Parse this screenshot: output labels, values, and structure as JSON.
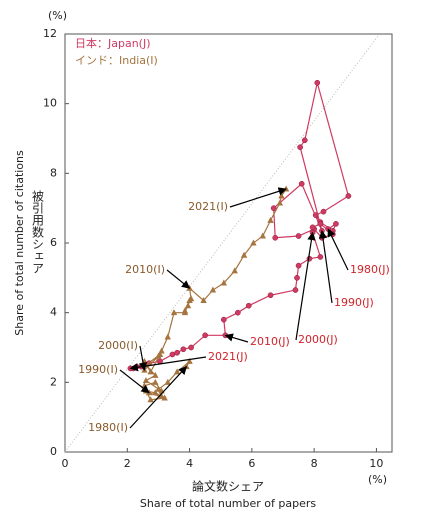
{
  "chart_data": {
    "type": "line",
    "x_unit": "(%)",
    "y_unit": "(%)",
    "xlabel": "論文数シェア",
    "xlabel_en": "Share of total number of papers",
    "ylabel": "被引用数シェア",
    "ylabel_en": "Share of total number of citations",
    "xlim": [
      0,
      10.5
    ],
    "ylim": [
      0,
      12
    ],
    "xticks": [
      0,
      2,
      4,
      6,
      8,
      10
    ],
    "yticks": [
      0,
      2,
      4,
      6,
      8,
      10,
      12
    ],
    "legend": "upper left",
    "reference_line": {
      "x": [
        0,
        10.1
      ],
      "values": [
        0,
        12
      ],
      "color": "#aaaaaa"
    },
    "series": [
      {
        "name": "日本：Japan(J)",
        "color": "#d03a62",
        "marker": "circle",
        "x": [
          8.45,
          8.7,
          8.6,
          8.2,
          8.05,
          8.3,
          9.1,
          8.1,
          7.7,
          7.55,
          8.25,
          7.6,
          6.7,
          6.75,
          7.5,
          8.0,
          8.25,
          8.6,
          8.2,
          7.95,
          7.95,
          8.2,
          7.85,
          7.5,
          7.45,
          7.4,
          6.6,
          5.9,
          5.55,
          5.1,
          5.15,
          4.5,
          4.05,
          3.8,
          3.6,
          3.45,
          3.05,
          2.7,
          2.45,
          2.3,
          2.2,
          2.1
        ],
        "values": [
          6.4,
          6.55,
          6.35,
          6.6,
          6.8,
          6.9,
          7.35,
          10.6,
          8.95,
          8.75,
          6.35,
          7.7,
          7.0,
          6.15,
          6.2,
          6.4,
          6.15,
          6.25,
          6.55,
          6.45,
          6.3,
          5.6,
          5.55,
          5.35,
          5.0,
          4.65,
          4.5,
          4.2,
          4.0,
          3.8,
          3.35,
          3.35,
          3.0,
          2.95,
          2.85,
          2.8,
          2.6,
          2.55,
          2.45,
          2.45,
          2.4,
          2.4
        ]
      },
      {
        "name": "インド：India(I)",
        "color": "#a5743f",
        "marker": "triangle",
        "x": [
          3.9,
          4.0,
          3.6,
          3.3,
          3.0,
          3.1,
          2.9,
          2.6,
          2.75,
          3.2,
          2.7,
          2.55,
          2.9,
          3.1,
          2.6,
          2.9,
          2.6,
          3.05,
          2.75,
          2.55,
          2.55,
          3.0,
          3.1,
          3.3,
          3.5,
          3.85,
          4.0,
          3.95,
          3.85,
          4.05,
          4.0,
          4.45,
          4.75,
          5.1,
          5.45,
          5.75,
          6.05,
          6.35,
          6.6,
          6.9,
          6.95,
          7.1
        ],
        "values": [
          2.45,
          2.6,
          2.3,
          2.0,
          1.8,
          1.6,
          1.7,
          1.75,
          1.5,
          1.55,
          1.7,
          1.9,
          2.0,
          1.75,
          2.05,
          2.2,
          2.5,
          2.8,
          2.3,
          2.6,
          2.35,
          2.75,
          2.9,
          3.3,
          4.0,
          4.0,
          4.35,
          4.2,
          4.05,
          4.4,
          4.7,
          4.35,
          4.65,
          4.85,
          5.2,
          5.65,
          6.0,
          6.2,
          6.65,
          7.15,
          7.35,
          7.55
        ]
      }
    ],
    "annotations": [
      {
        "text": "1980(J)",
        "color": "#d2232a"
      },
      {
        "text": "1990(J)",
        "color": "#d2232a"
      },
      {
        "text": "2000(J)",
        "color": "#d2232a"
      },
      {
        "text": "2010(J)",
        "color": "#d2232a"
      },
      {
        "text": "2021(J)",
        "color": "#d2232a"
      },
      {
        "text": "2021(I)",
        "color": "#8a5a2b"
      },
      {
        "text": "2010(I)",
        "color": "#8a5a2b"
      },
      {
        "text": "2000(I)",
        "color": "#8a5a2b"
      },
      {
        "text": "1990(I)",
        "color": "#8a5a2b"
      },
      {
        "text": "1980(I)",
        "color": "#8a5a2b"
      }
    ]
  }
}
